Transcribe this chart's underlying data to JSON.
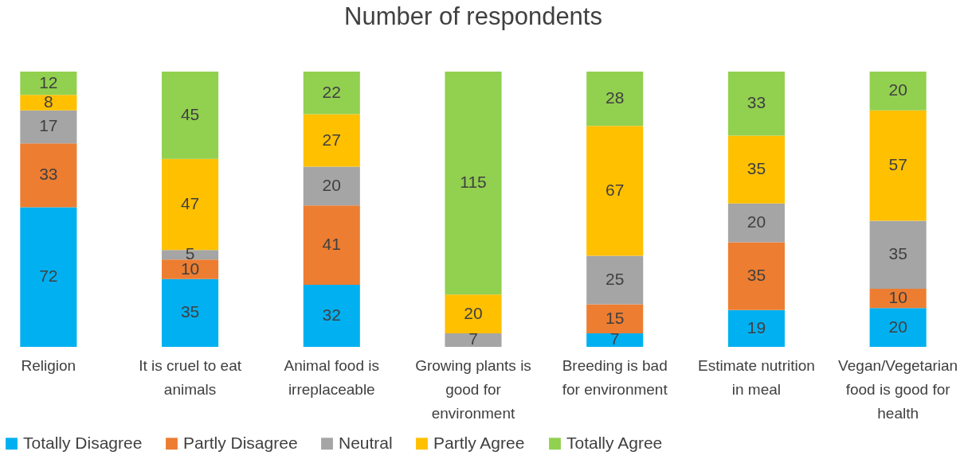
{
  "chart_data": {
    "type": "bar",
    "title": "Number of respondents",
    "stacked": true,
    "data_labels": true,
    "legend": "bottom",
    "grid": false,
    "categories": [
      "Religion",
      "It is cruel to eat animals",
      "Animal food is irreplaceable",
      "Growing plants is good for environment",
      "Breeding is bad for environment",
      "Estimate nutrition in meal",
      "Vegan/Vegetarian food is good for health"
    ],
    "series": [
      {
        "name": "Totally Disagree",
        "color": "#00b0f0",
        "values": [
          72,
          35,
          32,
          null,
          7,
          19,
          20
        ]
      },
      {
        "name": "Partly Disagree",
        "color": "#ed7d31",
        "values": [
          33,
          10,
          41,
          null,
          15,
          35,
          10
        ]
      },
      {
        "name": "Neutral",
        "color": "#a5a5a5",
        "values": [
          17,
          5,
          20,
          7,
          25,
          20,
          35
        ]
      },
      {
        "name": "Partly Agree",
        "color": "#ffc000",
        "values": [
          8,
          47,
          27,
          20,
          67,
          35,
          57
        ]
      },
      {
        "name": "Totally Agree",
        "color": "#92d050",
        "values": [
          12,
          45,
          22,
          115,
          28,
          33,
          20
        ]
      }
    ]
  }
}
